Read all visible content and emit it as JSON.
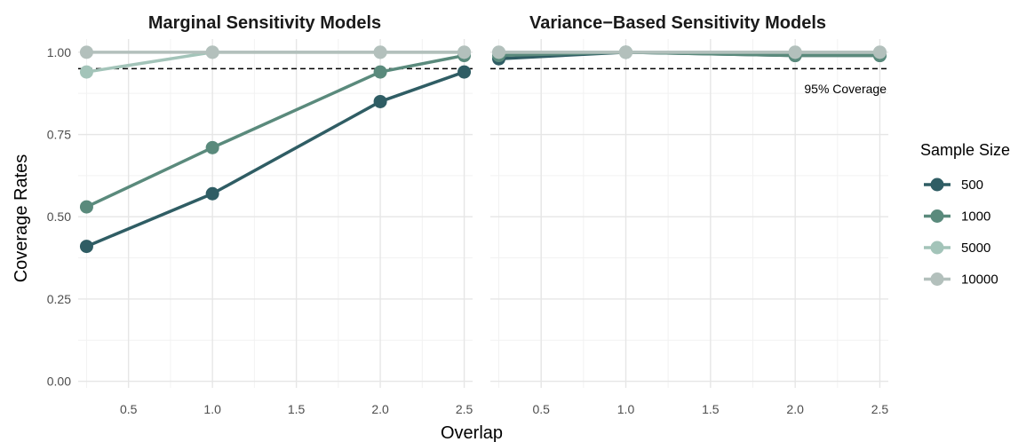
{
  "chart_data": {
    "type": "line",
    "xlabel": "Overlap",
    "ylabel": "Coverage Rates",
    "xlim": [
      0.2,
      2.55
    ],
    "ylim": [
      -0.02,
      1.04
    ],
    "x_ticks": [
      "0.5",
      "1.0",
      "1.5",
      "2.0",
      "2.5"
    ],
    "x_tick_values": [
      0.5,
      1.0,
      1.5,
      2.0,
      2.5
    ],
    "y_ticks": [
      "0.00",
      "0.25",
      "0.50",
      "0.75",
      "1.00"
    ],
    "y_tick_values": [
      0,
      0.25,
      0.5,
      0.75,
      1.0
    ],
    "grid": true,
    "legend": {
      "title": "Sample Size",
      "placement": "right",
      "entries": [
        "500",
        "1000",
        "5000",
        "10000"
      ]
    },
    "colors": {
      "500": "#2f5d64",
      "1000": "#5a8a7c",
      "5000": "#a3c4b9",
      "10000": "#b3c0bc"
    },
    "reference_line": {
      "y": 0.95,
      "label": "95% Coverage"
    },
    "panels": [
      {
        "title": "Marginal Sensitivity Models",
        "x": [
          0.25,
          1.0,
          2.0,
          2.5
        ],
        "series": [
          {
            "name": "500",
            "values": [
              0.41,
              0.57,
              0.85,
              0.94
            ]
          },
          {
            "name": "1000",
            "values": [
              0.53,
              0.71,
              0.94,
              0.99
            ]
          },
          {
            "name": "5000",
            "values": [
              0.94,
              1.0,
              1.0,
              1.0
            ]
          },
          {
            "name": "10000",
            "values": [
              1.0,
              1.0,
              1.0,
              1.0
            ]
          }
        ]
      },
      {
        "title": "Variance−Based Sensitivity Models",
        "x": [
          0.25,
          1.0,
          2.0,
          2.5
        ],
        "series": [
          {
            "name": "500",
            "values": [
              0.98,
              1.0,
              0.99,
              0.99
            ]
          },
          {
            "name": "1000",
            "values": [
              0.99,
              1.0,
              0.99,
              0.99
            ]
          },
          {
            "name": "5000",
            "values": [
              1.0,
              1.0,
              1.0,
              1.0
            ]
          },
          {
            "name": "10000",
            "values": [
              1.0,
              1.0,
              1.0,
              1.0
            ]
          }
        ]
      }
    ]
  }
}
